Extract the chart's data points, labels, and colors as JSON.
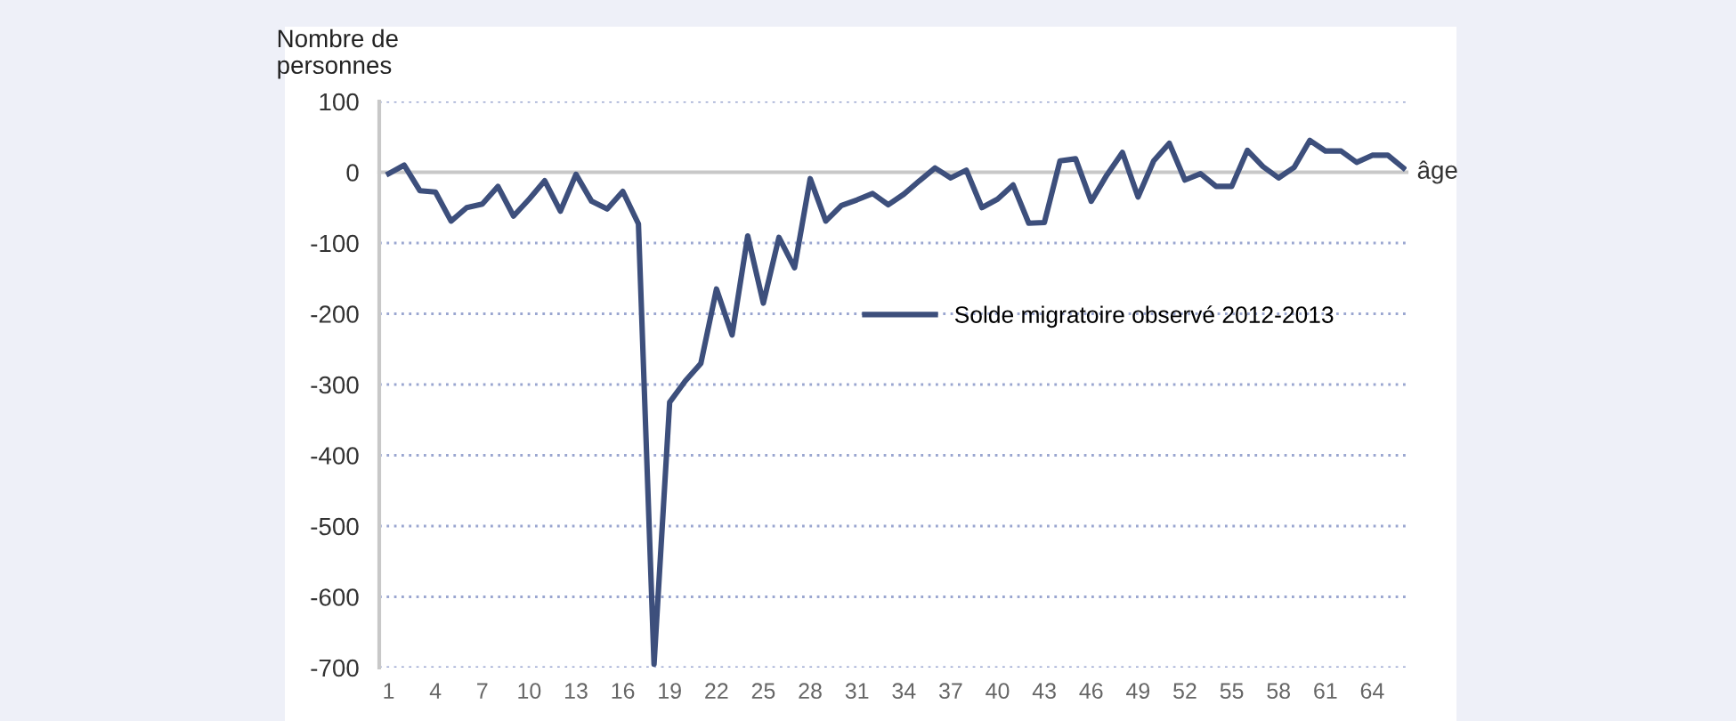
{
  "chart_data": {
    "type": "line",
    "ylabel": "Nombre de\npersonnes",
    "xlabel": "âge",
    "categories": [
      "1",
      null,
      null,
      "4",
      null,
      null,
      "7",
      null,
      null,
      "10",
      null,
      null,
      "13",
      null,
      null,
      "16",
      null,
      null,
      "19",
      null,
      null,
      "22",
      null,
      null,
      "25",
      null,
      null,
      "28",
      null,
      null,
      "31",
      null,
      null,
      "34",
      null,
      null,
      "37",
      null,
      null,
      "40",
      null,
      null,
      "43",
      null,
      null,
      "46",
      null,
      null,
      "49",
      null,
      null,
      "52",
      null,
      null,
      "55",
      null,
      null,
      "58",
      null,
      null,
      "61",
      null,
      null,
      "64",
      null,
      null
    ],
    "series": [
      {
        "name": "Solde migratoire observé 2012-2013",
        "color": "#3d4f7c",
        "values": [
          -2,
          10,
          -26,
          -28,
          -69,
          -50,
          -45,
          -20,
          -62,
          -38,
          -12,
          -55,
          -3,
          -41,
          -52,
          -27,
          -73,
          -695,
          -325,
          -295,
          -270,
          -165,
          -230,
          -90,
          -185,
          -92,
          -135,
          -9,
          -69,
          -47,
          -39,
          -30,
          -46,
          -31,
          -12,
          6,
          -8,
          3,
          -50,
          -38,
          -18,
          -72,
          -71,
          16,
          19,
          -41,
          -4,
          28,
          -35,
          16,
          41,
          -11,
          -2,
          -20,
          -20,
          31,
          8,
          -8,
          7,
          45,
          30,
          30,
          14,
          24,
          24,
          6
        ]
      }
    ],
    "ylim": [
      -700,
      100
    ],
    "yticks": [
      -700,
      -600,
      -500,
      -400,
      -300,
      -200,
      -100,
      0,
      100
    ],
    "grid": "y",
    "legend": "right",
    "marker": "none",
    "line_style": "solid"
  }
}
